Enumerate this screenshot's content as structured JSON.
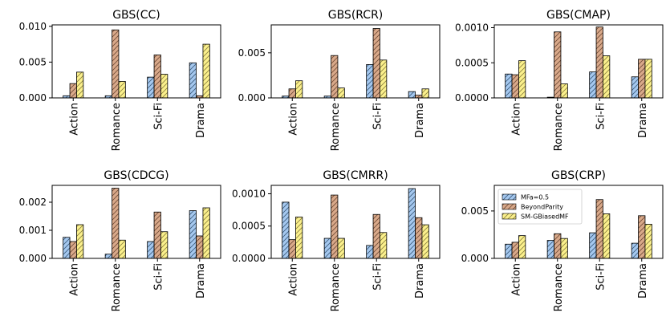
{
  "figure": {
    "description_colors": {
      "series_0": "#a5c8ef",
      "series_1": "#d9a98a",
      "series_2": "#fbf08c"
    }
  },
  "legend": {
    "entries": [
      "MFa=0.5",
      "BeyondParity",
      "SM-GBiasedMF"
    ]
  },
  "chart_data": [
    {
      "type": "bar",
      "title": "GBS(CC)",
      "categories": [
        "Action",
        "Romance",
        "Sci-Fi",
        "Drama"
      ],
      "series": [
        {
          "name": "MFa=0.5",
          "values": [
            0.0003,
            0.0003,
            0.0029,
            0.0049
          ]
        },
        {
          "name": "BeyondParity",
          "values": [
            0.002,
            0.0095,
            0.006,
            0.0003
          ]
        },
        {
          "name": "SM-GBiasedMF",
          "values": [
            0.0036,
            0.0023,
            0.0033,
            0.0075
          ]
        }
      ],
      "ylim": [
        0,
        0.0102
      ],
      "yticks": [
        "0.000",
        "0.005",
        "0.010"
      ],
      "ytick_values": [
        0,
        0.005,
        0.01
      ]
    },
    {
      "type": "bar",
      "title": "GBS(RCR)",
      "categories": [
        "Action",
        "Romance",
        "Sci-Fi",
        "Drama"
      ],
      "series": [
        {
          "name": "MFa=0.5",
          "values": [
            0.0002,
            0.0002,
            0.0037,
            0.0007
          ]
        },
        {
          "name": "BeyondParity",
          "values": [
            0.001,
            0.0047,
            0.0077,
            0.0003
          ]
        },
        {
          "name": "SM-GBiasedMF",
          "values": [
            0.0019,
            0.0011,
            0.0042,
            0.001
          ]
        }
      ],
      "ylim": [
        0,
        0.0081
      ],
      "yticks": [
        "0.000",
        "0.005"
      ],
      "ytick_values": [
        0,
        0.005
      ]
    },
    {
      "type": "bar",
      "title": "GBS(CMAP)",
      "categories": [
        "Action",
        "Romance",
        "Sci-Fi",
        "Drama"
      ],
      "series": [
        {
          "name": "MFa=0.5",
          "values": [
            0.00034,
            1e-05,
            0.00037,
            0.0003
          ]
        },
        {
          "name": "BeyondParity",
          "values": [
            0.00033,
            0.00094,
            0.00101,
            0.00055
          ]
        },
        {
          "name": "SM-GBiasedMF",
          "values": [
            0.00053,
            0.0002,
            0.0006,
            0.00055
          ]
        }
      ],
      "ylim": [
        0,
        0.00104
      ],
      "yticks": [
        "0.0000",
        "0.0005",
        "0.0010"
      ],
      "ytick_values": [
        0,
        0.0005,
        0.001
      ]
    },
    {
      "type": "bar",
      "title": "GBS(CDCG)",
      "categories": [
        "Action",
        "Romance",
        "Sci-Fi",
        "Drama"
      ],
      "series": [
        {
          "name": "MFa=0.5",
          "values": [
            0.00075,
            0.00015,
            0.0006,
            0.0017
          ]
        },
        {
          "name": "BeyondParity",
          "values": [
            0.0006,
            0.0025,
            0.00165,
            0.0008
          ]
        },
        {
          "name": "SM-GBiasedMF",
          "values": [
            0.0012,
            0.00065,
            0.00095,
            0.0018
          ]
        }
      ],
      "ylim": [
        0,
        0.0026
      ],
      "yticks": [
        "0.000",
        "0.001",
        "0.002"
      ],
      "ytick_values": [
        0,
        0.001,
        0.002
      ]
    },
    {
      "type": "bar",
      "title": "GBS(CMRR)",
      "categories": [
        "Action",
        "Romance",
        "Sci-Fi",
        "Drama"
      ],
      "series": [
        {
          "name": "MFa=0.5",
          "values": [
            0.00087,
            0.00031,
            0.0002,
            0.00108
          ]
        },
        {
          "name": "BeyondParity",
          "values": [
            0.00029,
            0.00098,
            0.00068,
            0.00063
          ]
        },
        {
          "name": "SM-GBiasedMF",
          "values": [
            0.00064,
            0.00031,
            0.0004,
            0.00052
          ]
        }
      ],
      "ylim": [
        0,
        0.00113
      ],
      "yticks": [
        "0.0000",
        "0.0005",
        "0.0010"
      ],
      "ytick_values": [
        0,
        0.0005,
        0.001
      ]
    },
    {
      "type": "bar",
      "title": "GBS(CRP)",
      "categories": [
        "Action",
        "Romance",
        "Sci-Fi",
        "Drama"
      ],
      "series": [
        {
          "name": "MFa=0.5",
          "values": [
            0.0015,
            0.0019,
            0.0027,
            0.0016
          ]
        },
        {
          "name": "BeyondParity",
          "values": [
            0.0017,
            0.0026,
            0.0062,
            0.0045
          ]
        },
        {
          "name": "SM-GBiasedMF",
          "values": [
            0.0024,
            0.0021,
            0.0047,
            0.0036
          ]
        }
      ],
      "ylim": [
        0,
        0.0077
      ],
      "yticks": [
        "0.000",
        "0.005"
      ],
      "ytick_values": [
        0,
        0.005
      ],
      "legend_location": "upper-left"
    }
  ]
}
